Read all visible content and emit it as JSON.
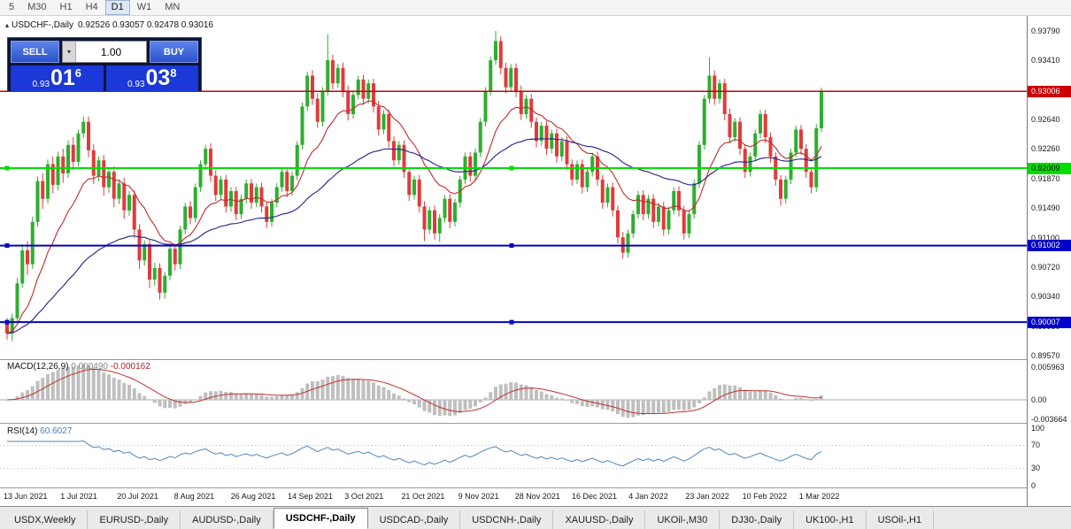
{
  "toolbar": {
    "timeframes": [
      "5",
      "M30",
      "H1",
      "H4",
      "D1",
      "W1",
      "MN"
    ],
    "active": "D1"
  },
  "chart": {
    "title": "USDCHF-,Daily",
    "ohlc": "0.92526 0.93057 0.92478 0.93016",
    "collapse_icon": "▴"
  },
  "trade_panel": {
    "sell_label": "SELL",
    "buy_label": "BUY",
    "volume": "1.00",
    "spin_icon": "▾",
    "sell_price": {
      "prefix": "0.93",
      "big": "01",
      "sup": "6"
    },
    "buy_price": {
      "prefix": "0.93",
      "big": "03",
      "sup": "8"
    }
  },
  "price_axis": {
    "ticks": [
      "0.93790",
      "0.93410",
      "0.92640",
      "0.92260",
      "0.91870",
      "0.91490",
      "0.91100",
      "0.90720",
      "0.90340",
      "0.89950",
      "0.89570"
    ]
  },
  "tabs": {
    "active_index": 3,
    "items": [
      "USDX,Weekly",
      "EURUSD-,Daily",
      "AUDUSD-,Daily",
      "USDCHF-,Daily",
      "USDCAD-,Daily",
      "USDCNH-,Daily",
      "XAUUSD-,Daily",
      "UKOil-,M30",
      "DJ30-,Daily",
      "UK100-,H1",
      "USOil-,H1"
    ]
  },
  "chart_data": {
    "type": "candlestick",
    "symbol": "USDCHF-",
    "period": "Daily",
    "colors": {
      "up": "#2FAE2F",
      "down": "#E03B3B",
      "ma_fast": "#C22A2A",
      "ma_slow": "#20208C",
      "macd_hist": "#BFBFBF",
      "macd_signal": "#C03030",
      "rsi": "#4F86C0"
    },
    "overlays": [
      {
        "name": "ma-fast",
        "type": "ema",
        "period": 13
      },
      {
        "name": "ma-slow",
        "type": "ema",
        "period": 45
      }
    ],
    "horizontal_lines": [
      {
        "price": 0.93006,
        "label": "0.93006",
        "color": "#CC0000",
        "text": "#FFFFFF",
        "width": 1.4,
        "selected": false
      },
      {
        "price": 0.92009,
        "label": "0.92009",
        "color": "#00DD00",
        "text": "#000000",
        "width": 2,
        "selected": true
      },
      {
        "price": 0.91002,
        "label": "0.91002",
        "color": "#0000C8",
        "text": "#FFFFFF",
        "width": 2,
        "selected": true
      },
      {
        "price": 0.90007,
        "label": "0.90007",
        "color": "#0000C8",
        "text": "#FFFFFF",
        "width": 2,
        "selected": true
      }
    ],
    "indicators": [
      {
        "name": "MACD(12,26,9)",
        "value1": "0.000490",
        "value2": "-0.000162",
        "axis": [
          "0.005963",
          "0.00",
          "-0.003664"
        ],
        "fast": 12,
        "slow": 26,
        "signal": 9
      },
      {
        "name": "RSI(14)",
        "value": "60.6027",
        "axis": [
          "100",
          "70",
          "30",
          "0"
        ],
        "levels": [
          70,
          30
        ],
        "period": 14
      }
    ],
    "x_labels": [
      "13 Jun 2021",
      "1 Jul 2021",
      "20 Jul 2021",
      "8 Aug 2021",
      "26 Aug 2021",
      "14 Sep 2021",
      "3 Oct 2021",
      "21 Oct 2021",
      "9 Nov 2021",
      "28 Nov 2021",
      "16 Dec 2021",
      "4 Jan 2022",
      "23 Jan 2022",
      "10 Feb 2022",
      "1 Mar 2022"
    ],
    "candles": [
      [
        0.9,
        0.9006,
        0.8978,
        0.8986
      ],
      [
        0.8986,
        0.9012,
        0.8976,
        0.9006
      ],
      [
        0.9006,
        0.9058,
        0.9,
        0.9051
      ],
      [
        0.9051,
        0.9102,
        0.9045,
        0.9094
      ],
      [
        0.9094,
        0.9106,
        0.9062,
        0.9076
      ],
      [
        0.9076,
        0.9138,
        0.907,
        0.9131
      ],
      [
        0.9131,
        0.919,
        0.9125,
        0.9184
      ],
      [
        0.9184,
        0.9194,
        0.9148,
        0.9161
      ],
      [
        0.9161,
        0.9212,
        0.9155,
        0.9206
      ],
      [
        0.9206,
        0.9216,
        0.9168,
        0.9179
      ],
      [
        0.9179,
        0.9222,
        0.9172,
        0.9216
      ],
      [
        0.9216,
        0.9226,
        0.9182,
        0.9194
      ],
      [
        0.9194,
        0.9237,
        0.9188,
        0.9231
      ],
      [
        0.9231,
        0.9241,
        0.9198,
        0.9209
      ],
      [
        0.9209,
        0.9251,
        0.9203,
        0.9246
      ],
      [
        0.9246,
        0.9268,
        0.924,
        0.9261
      ],
      [
        0.9261,
        0.9268,
        0.9215,
        0.9224
      ],
      [
        0.9224,
        0.9232,
        0.918,
        0.9191
      ],
      [
        0.9191,
        0.9216,
        0.9184,
        0.9211
      ],
      [
        0.9211,
        0.9218,
        0.9165,
        0.9176
      ],
      [
        0.9176,
        0.9201,
        0.9169,
        0.9196
      ],
      [
        0.9196,
        0.9203,
        0.915,
        0.9161
      ],
      [
        0.9161,
        0.9186,
        0.9154,
        0.9181
      ],
      [
        0.9181,
        0.9188,
        0.9135,
        0.9146
      ],
      [
        0.9146,
        0.9171,
        0.9139,
        0.9166
      ],
      [
        0.9166,
        0.9172,
        0.911,
        0.9121
      ],
      [
        0.9121,
        0.9128,
        0.907,
        0.9081
      ],
      [
        0.9081,
        0.9107,
        0.9074,
        0.9102
      ],
      [
        0.9102,
        0.9108,
        0.9045,
        0.9056
      ],
      [
        0.9056,
        0.9078,
        0.9048,
        0.9071
      ],
      [
        0.9071,
        0.9077,
        0.903,
        0.9039
      ],
      [
        0.9039,
        0.9066,
        0.9031,
        0.9061
      ],
      [
        0.9061,
        0.9101,
        0.9055,
        0.9096
      ],
      [
        0.9096,
        0.9103,
        0.9068,
        0.9076
      ],
      [
        0.9076,
        0.9126,
        0.907,
        0.9121
      ],
      [
        0.9121,
        0.9156,
        0.9115,
        0.9151
      ],
      [
        0.9151,
        0.9158,
        0.9128,
        0.9136
      ],
      [
        0.9136,
        0.9181,
        0.913,
        0.9176
      ],
      [
        0.9176,
        0.9211,
        0.917,
        0.9206
      ],
      [
        0.9206,
        0.9231,
        0.9199,
        0.9226
      ],
      [
        0.9226,
        0.9233,
        0.9183,
        0.9191
      ],
      [
        0.9191,
        0.9198,
        0.9158,
        0.9166
      ],
      [
        0.9166,
        0.9191,
        0.9159,
        0.9186
      ],
      [
        0.9186,
        0.9192,
        0.9143,
        0.9151
      ],
      [
        0.9151,
        0.9176,
        0.9144,
        0.9171
      ],
      [
        0.9171,
        0.9177,
        0.9133,
        0.9141
      ],
      [
        0.9141,
        0.9166,
        0.9135,
        0.9161
      ],
      [
        0.9161,
        0.9186,
        0.9155,
        0.9181
      ],
      [
        0.9181,
        0.9187,
        0.9148,
        0.9156
      ],
      [
        0.9156,
        0.9181,
        0.915,
        0.9176
      ],
      [
        0.9176,
        0.9182,
        0.9143,
        0.9151
      ],
      [
        0.9151,
        0.9157,
        0.9123,
        0.9131
      ],
      [
        0.9131,
        0.9161,
        0.9125,
        0.9156
      ],
      [
        0.9156,
        0.9181,
        0.915,
        0.9176
      ],
      [
        0.9176,
        0.9201,
        0.917,
        0.9196
      ],
      [
        0.9196,
        0.9202,
        0.9163,
        0.9171
      ],
      [
        0.9171,
        0.9196,
        0.9165,
        0.9191
      ],
      [
        0.9191,
        0.9236,
        0.9185,
        0.9231
      ],
      [
        0.9231,
        0.9286,
        0.9225,
        0.9281
      ],
      [
        0.9281,
        0.9326,
        0.9275,
        0.9321
      ],
      [
        0.9321,
        0.9328,
        0.9283,
        0.9291
      ],
      [
        0.9291,
        0.9298,
        0.9253,
        0.9261
      ],
      [
        0.9261,
        0.9306,
        0.9255,
        0.9301
      ],
      [
        0.9301,
        0.9375,
        0.9295,
        0.9341
      ],
      [
        0.9341,
        0.9348,
        0.9303,
        0.9311
      ],
      [
        0.9311,
        0.9336,
        0.9305,
        0.9331
      ],
      [
        0.9331,
        0.9338,
        0.9293,
        0.9301
      ],
      [
        0.9301,
        0.9308,
        0.9263,
        0.9271
      ],
      [
        0.9271,
        0.9301,
        0.9265,
        0.9296
      ],
      [
        0.9296,
        0.9321,
        0.929,
        0.9316
      ],
      [
        0.9316,
        0.9322,
        0.9283,
        0.9291
      ],
      [
        0.9291,
        0.9316,
        0.9285,
        0.9311
      ],
      [
        0.9311,
        0.9317,
        0.9273,
        0.9281
      ],
      [
        0.9281,
        0.9288,
        0.9243,
        0.9251
      ],
      [
        0.9251,
        0.9276,
        0.9245,
        0.9271
      ],
      [
        0.9271,
        0.9277,
        0.9228,
        0.9236
      ],
      [
        0.9236,
        0.9242,
        0.9203,
        0.9211
      ],
      [
        0.9211,
        0.9236,
        0.9205,
        0.9231
      ],
      [
        0.9231,
        0.9237,
        0.9188,
        0.9196
      ],
      [
        0.9196,
        0.9202,
        0.9158,
        0.9166
      ],
      [
        0.9166,
        0.9191,
        0.916,
        0.9186
      ],
      [
        0.9186,
        0.9192,
        0.9143,
        0.9151
      ],
      [
        0.9151,
        0.9158,
        0.9106,
        0.9121
      ],
      [
        0.9121,
        0.9151,
        0.9115,
        0.9146
      ],
      [
        0.9146,
        0.9152,
        0.9108,
        0.9116
      ],
      [
        0.9116,
        0.9141,
        0.9105,
        0.9136
      ],
      [
        0.9136,
        0.9166,
        0.913,
        0.9161
      ],
      [
        0.9161,
        0.9167,
        0.9123,
        0.9131
      ],
      [
        0.9131,
        0.9161,
        0.9125,
        0.9156
      ],
      [
        0.9156,
        0.9191,
        0.915,
        0.9186
      ],
      [
        0.9186,
        0.9221,
        0.918,
        0.9216
      ],
      [
        0.9216,
        0.9222,
        0.9183,
        0.9191
      ],
      [
        0.9191,
        0.9226,
        0.9185,
        0.9221
      ],
      [
        0.9221,
        0.9266,
        0.9215,
        0.9261
      ],
      [
        0.9261,
        0.9306,
        0.9255,
        0.9301
      ],
      [
        0.9301,
        0.9346,
        0.9295,
        0.9341
      ],
      [
        0.9341,
        0.9379,
        0.9335,
        0.9366
      ],
      [
        0.9366,
        0.9372,
        0.9323,
        0.9331
      ],
      [
        0.9331,
        0.9338,
        0.9298,
        0.9306
      ],
      [
        0.9306,
        0.9336,
        0.93,
        0.9331
      ],
      [
        0.9331,
        0.9337,
        0.9293,
        0.9301
      ],
      [
        0.9301,
        0.9308,
        0.9263,
        0.9271
      ],
      [
        0.9271,
        0.9296,
        0.9265,
        0.9291
      ],
      [
        0.9291,
        0.9297,
        0.9253,
        0.9261
      ],
      [
        0.9261,
        0.9267,
        0.9228,
        0.9236
      ],
      [
        0.9236,
        0.9261,
        0.923,
        0.9256
      ],
      [
        0.9256,
        0.9262,
        0.9218,
        0.9226
      ],
      [
        0.9226,
        0.9251,
        0.922,
        0.9246
      ],
      [
        0.9246,
        0.9252,
        0.9208,
        0.9216
      ],
      [
        0.9216,
        0.9241,
        0.921,
        0.9236
      ],
      [
        0.9236,
        0.9242,
        0.9198,
        0.9206
      ],
      [
        0.9206,
        0.9212,
        0.9178,
        0.9186
      ],
      [
        0.9186,
        0.9211,
        0.918,
        0.9206
      ],
      [
        0.9206,
        0.9212,
        0.9168,
        0.9176
      ],
      [
        0.9176,
        0.9201,
        0.917,
        0.9196
      ],
      [
        0.9196,
        0.9221,
        0.919,
        0.9216
      ],
      [
        0.9216,
        0.9222,
        0.9178,
        0.9186
      ],
      [
        0.9186,
        0.9192,
        0.9148,
        0.9156
      ],
      [
        0.9156,
        0.9181,
        0.915,
        0.9176
      ],
      [
        0.9176,
        0.9182,
        0.9138,
        0.9146
      ],
      [
        0.9146,
        0.9152,
        0.9103,
        0.9111
      ],
      [
        0.9111,
        0.9118,
        0.9083,
        0.9091
      ],
      [
        0.9091,
        0.9121,
        0.9085,
        0.9116
      ],
      [
        0.9116,
        0.9146,
        0.911,
        0.9141
      ],
      [
        0.9141,
        0.9171,
        0.9135,
        0.9166
      ],
      [
        0.9166,
        0.9172,
        0.9133,
        0.9141
      ],
      [
        0.9141,
        0.9166,
        0.9135,
        0.9161
      ],
      [
        0.9161,
        0.9167,
        0.9123,
        0.9131
      ],
      [
        0.9131,
        0.9156,
        0.9125,
        0.9151
      ],
      [
        0.9151,
        0.9157,
        0.9113,
        0.9121
      ],
      [
        0.9121,
        0.9151,
        0.9115,
        0.9146
      ],
      [
        0.9146,
        0.9176,
        0.914,
        0.9171
      ],
      [
        0.9171,
        0.9177,
        0.9138,
        0.9146
      ],
      [
        0.9146,
        0.9152,
        0.9108,
        0.9116
      ],
      [
        0.9116,
        0.9146,
        0.911,
        0.9141
      ],
      [
        0.9141,
        0.9186,
        0.9135,
        0.9181
      ],
      [
        0.9181,
        0.9236,
        0.9175,
        0.9231
      ],
      [
        0.9231,
        0.9296,
        0.9225,
        0.9291
      ],
      [
        0.9291,
        0.9345,
        0.9285,
        0.9321
      ],
      [
        0.9321,
        0.9328,
        0.9283,
        0.9291
      ],
      [
        0.9291,
        0.9316,
        0.9285,
        0.9311
      ],
      [
        0.9311,
        0.9317,
        0.9263,
        0.9271
      ],
      [
        0.9271,
        0.9278,
        0.9233,
        0.9241
      ],
      [
        0.9241,
        0.9266,
        0.9235,
        0.9261
      ],
      [
        0.9261,
        0.9267,
        0.9218,
        0.9226
      ],
      [
        0.9226,
        0.9232,
        0.9188,
        0.9196
      ],
      [
        0.9196,
        0.9221,
        0.919,
        0.9216
      ],
      [
        0.9216,
        0.9251,
        0.921,
        0.9246
      ],
      [
        0.9246,
        0.9276,
        0.924,
        0.9271
      ],
      [
        0.9271,
        0.9277,
        0.9233,
        0.9241
      ],
      [
        0.9241,
        0.9247,
        0.9208,
        0.9216
      ],
      [
        0.9216,
        0.9222,
        0.9178,
        0.9186
      ],
      [
        0.9186,
        0.9192,
        0.9152,
        0.9161
      ],
      [
        0.9161,
        0.9191,
        0.9155,
        0.9186
      ],
      [
        0.9186,
        0.9226,
        0.918,
        0.9221
      ],
      [
        0.9221,
        0.9256,
        0.9215,
        0.9251
      ],
      [
        0.9251,
        0.9257,
        0.9218,
        0.9226
      ],
      [
        0.9226,
        0.9232,
        0.9188,
        0.9196
      ],
      [
        0.9196,
        0.9202,
        0.9168,
        0.9176
      ],
      [
        0.9176,
        0.9258,
        0.917,
        0.92526
      ],
      [
        0.92526,
        0.93057,
        0.92478,
        0.93016
      ]
    ]
  }
}
